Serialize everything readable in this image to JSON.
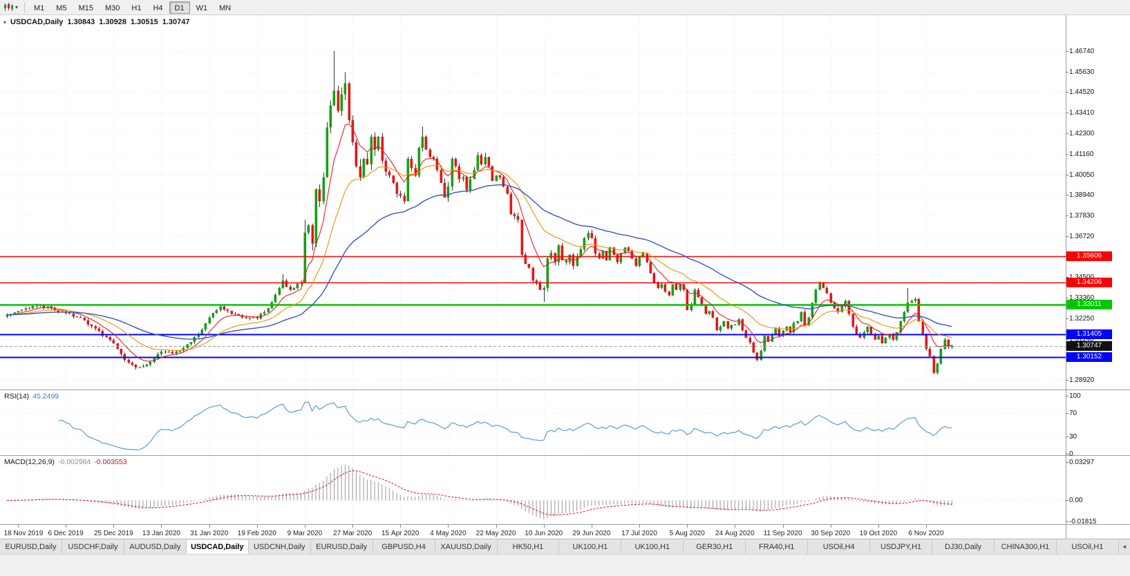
{
  "icons": {
    "toolbar_caret": "▾",
    "title_arrow": "▾",
    "tab_scroll_left": "◄"
  },
  "toolbar": {
    "timeframes": [
      {
        "label": "M1",
        "active": false
      },
      {
        "label": "M5",
        "active": false
      },
      {
        "label": "M15",
        "active": false
      },
      {
        "label": "M30",
        "active": false
      },
      {
        "label": "H1",
        "active": false
      },
      {
        "label": "H4",
        "active": false
      },
      {
        "label": "D1",
        "active": true
      },
      {
        "label": "W1",
        "active": false
      },
      {
        "label": "MN",
        "active": false
      }
    ]
  },
  "chart": {
    "title": {
      "symbol": "USDCAD,Daily",
      "open": "1.30843",
      "high": "1.30928",
      "low": "1.30515",
      "close": "1.30747"
    }
  },
  "indicators": {
    "rsi": {
      "label": "RSI(14)",
      "value": "45.2499",
      "color": "#5a9bd4",
      "levels": [
        70,
        30
      ],
      "ticks": [
        {
          "label": "100",
          "value": 100
        },
        {
          "label": "70",
          "value": 70
        },
        {
          "label": "30",
          "value": 30
        },
        {
          "label": "0",
          "value": 0
        }
      ]
    },
    "macd": {
      "label": "MACD(12,26,9)",
      "main_value": "-0.002984",
      "signal_value": "-0.003553",
      "histogram_color": "#a0a0a0",
      "signal_color": "#e01010",
      "ticks": [
        {
          "label": "0.03297",
          "value": 0.03297
        },
        {
          "label": "0.00",
          "value": 0
        },
        {
          "label": "-0.01815",
          "value": -0.01815
        }
      ],
      "range": [
        -0.01815,
        0.03297
      ]
    }
  },
  "chart_data": {
    "type": "candlestick",
    "symbol": "USDCAD",
    "timeframe": "Daily",
    "n_candles": 258,
    "up_color": "#14a014",
    "down_color": "#e81414",
    "wick_color": "#333333",
    "y_axis_ticks": [
      {
        "label": "1.46740",
        "value": 1.4674
      },
      {
        "label": "1.45630",
        "value": 1.4563
      },
      {
        "label": "1.44520",
        "value": 1.4452
      },
      {
        "label": "1.43410",
        "value": 1.4341
      },
      {
        "label": "1.42300",
        "value": 1.423
      },
      {
        "label": "1.41160",
        "value": 1.4116
      },
      {
        "label": "1.40050",
        "value": 1.4005
      },
      {
        "label": "1.38940",
        "value": 1.3894
      },
      {
        "label": "1.37830",
        "value": 1.3783
      },
      {
        "label": "1.36720",
        "value": 1.3672
      },
      {
        "label": "1.35610",
        "value": 1.3561,
        "hidden": true
      },
      {
        "label": "1.34500",
        "value": 1.345
      },
      {
        "label": "1.33360",
        "value": 1.3336
      },
      {
        "label": "1.32250",
        "value": 1.3225
      },
      {
        "label": "1.31140",
        "value": 1.3114
      },
      {
        "label": "1.30030",
        "value": 1.3003,
        "hidden": true
      },
      {
        "label": "1.28920",
        "value": 1.2892
      }
    ],
    "x_axis_labels": [
      {
        "index": 3,
        "label": "18 Nov 2019"
      },
      {
        "index": 16,
        "label": "6 Dec 2019"
      },
      {
        "index": 29,
        "label": "25 Dec 2019"
      },
      {
        "index": 42,
        "label": "13 Jan 2020"
      },
      {
        "index": 55,
        "label": "31 Jan 2020"
      },
      {
        "index": 68,
        "label": "19 Feb 2020"
      },
      {
        "index": 81,
        "label": "9 Mar 2020"
      },
      {
        "index": 94,
        "label": "27 Mar 2020"
      },
      {
        "index": 107,
        "label": "15 Apr 2020"
      },
      {
        "index": 120,
        "label": "4 May 2020"
      },
      {
        "index": 133,
        "label": "22 May 2020"
      },
      {
        "index": 146,
        "label": "10 Jun 2020"
      },
      {
        "index": 159,
        "label": "29 Jun 2020"
      },
      {
        "index": 172,
        "label": "17 Jul 2020"
      },
      {
        "index": 185,
        "label": "5 Aug 2020"
      },
      {
        "index": 198,
        "label": "24 Aug 2020"
      },
      {
        "index": 211,
        "label": "11 Sep 2020"
      },
      {
        "index": 224,
        "label": "30 Sep 2020"
      },
      {
        "index": 237,
        "label": "19 Oct 2020"
      },
      {
        "index": 250,
        "label": "6 Nov 2020"
      }
    ],
    "levels": [
      {
        "value": 1.35606,
        "label": "1.35606",
        "color": "#ff0000",
        "width": 1.4
      },
      {
        "value": 1.34206,
        "label": "1.34206",
        "color": "#ff0000",
        "width": 1.4
      },
      {
        "value": 1.33011,
        "label": "1.33011",
        "color": "#00c800",
        "width": 2.4
      },
      {
        "value": 1.31405,
        "label": "1.31405",
        "color": "#0000ff",
        "width": 2
      },
      {
        "value": 1.30152,
        "label": "1.30152",
        "color": "#0000ff",
        "width": 2
      }
    ],
    "current_price": {
      "value": 1.30747,
      "label": "1.30747",
      "badge_color": "#111111"
    },
    "moving_averages": [
      {
        "type": "ema",
        "period": 8,
        "color": "#e02020",
        "width": 1.1
      },
      {
        "type": "ema",
        "period": 21,
        "color": "#f09000",
        "width": 1.1
      },
      {
        "type": "ema",
        "period": 50,
        "color": "#3356c0",
        "width": 1.4
      }
    ],
    "volatility": [
      {
        "from": 0,
        "to": 79,
        "amp": 0.0013
      },
      {
        "from": 80,
        "to": 100,
        "amp": 0.0045
      },
      {
        "from": 101,
        "to": 135,
        "amp": 0.0028
      },
      {
        "from": 136,
        "to": 160,
        "amp": 0.0022
      },
      {
        "from": 161,
        "to": 257,
        "amp": 0.0013
      }
    ],
    "wick_overrides": [
      {
        "i": 35,
        "l": 1.2948
      },
      {
        "i": 75,
        "h": 1.3465
      },
      {
        "i": 81,
        "h": 1.376
      },
      {
        "i": 89,
        "h": 1.4674
      },
      {
        "i": 92,
        "h": 1.456
      },
      {
        "i": 113,
        "h": 1.4265
      },
      {
        "i": 146,
        "l": 1.3315
      },
      {
        "i": 204,
        "l": 1.2995
      },
      {
        "i": 221,
        "h": 1.342
      },
      {
        "i": 245,
        "h": 1.339
      },
      {
        "i": 252,
        "l": 1.2928
      }
    ],
    "close_anchors": [
      [
        0,
        1.3245
      ],
      [
        3,
        1.3265
      ],
      [
        8,
        1.33
      ],
      [
        12,
        1.328
      ],
      [
        16,
        1.3255
      ],
      [
        20,
        1.323
      ],
      [
        24,
        1.317
      ],
      [
        29,
        1.309
      ],
      [
        32,
        1.3
      ],
      [
        35,
        1.296
      ],
      [
        38,
        1.2975
      ],
      [
        42,
        1.3045
      ],
      [
        45,
        1.3035
      ],
      [
        48,
        1.3065
      ],
      [
        52,
        1.314
      ],
      [
        55,
        1.323
      ],
      [
        58,
        1.329
      ],
      [
        61,
        1.325
      ],
      [
        64,
        1.323
      ],
      [
        68,
        1.3225
      ],
      [
        71,
        1.328
      ],
      [
        74,
        1.339
      ],
      [
        75,
        1.343
      ],
      [
        77,
        1.338
      ],
      [
        80,
        1.342
      ],
      [
        81,
        1.369
      ],
      [
        82,
        1.373
      ],
      [
        83,
        1.363
      ],
      [
        84,
        1.3925
      ],
      [
        85,
        1.386
      ],
      [
        86,
        1.399
      ],
      [
        87,
        1.426
      ],
      [
        88,
        1.438
      ],
      [
        89,
        1.446
      ],
      [
        90,
        1.435
      ],
      [
        91,
        1.444
      ],
      [
        92,
        1.45
      ],
      [
        93,
        1.43
      ],
      [
        94,
        1.418
      ],
      [
        95,
        1.405
      ],
      [
        96,
        1.399
      ],
      [
        97,
        1.409
      ],
      [
        98,
        1.406
      ],
      [
        99,
        1.421
      ],
      [
        100,
        1.414
      ],
      [
        101,
        1.421
      ],
      [
        102,
        1.408
      ],
      [
        103,
        1.402
      ],
      [
        104,
        1.4
      ],
      [
        105,
        1.396
      ],
      [
        106,
        1.39
      ],
      [
        107,
        1.389
      ],
      [
        108,
        1.386
      ],
      [
        109,
        1.409
      ],
      [
        110,
        1.404
      ],
      [
        111,
        1.4
      ],
      [
        112,
        1.415
      ],
      [
        113,
        1.421
      ],
      [
        114,
        1.414
      ],
      [
        115,
        1.41
      ],
      [
        116,
        1.409
      ],
      [
        117,
        1.403
      ],
      [
        118,
        1.396
      ],
      [
        119,
        1.388
      ],
      [
        120,
        1.394
      ],
      [
        121,
        1.409
      ],
      [
        122,
        1.405
      ],
      [
        123,
        1.398
      ],
      [
        124,
        1.399
      ],
      [
        125,
        1.392
      ],
      [
        126,
        1.398
      ],
      [
        127,
        1.403
      ],
      [
        128,
        1.411
      ],
      [
        129,
        1.406
      ],
      [
        130,
        1.41
      ],
      [
        131,
        1.405
      ],
      [
        132,
        1.397
      ],
      [
        133,
        1.4
      ],
      [
        134,
        1.399
      ],
      [
        135,
        1.394
      ],
      [
        136,
        1.39
      ],
      [
        137,
        1.379
      ],
      [
        138,
        1.378
      ],
      [
        139,
        1.376
      ],
      [
        140,
        1.357
      ],
      [
        141,
        1.352
      ],
      [
        142,
        1.35
      ],
      [
        143,
        1.343
      ],
      [
        144,
        1.342
      ],
      [
        145,
        1.338
      ],
      [
        146,
        1.339
      ],
      [
        147,
        1.355
      ],
      [
        148,
        1.358
      ],
      [
        149,
        1.353
      ],
      [
        150,
        1.362
      ],
      [
        151,
        1.354
      ],
      [
        152,
        1.353
      ],
      [
        153,
        1.357
      ],
      [
        154,
        1.351
      ],
      [
        155,
        1.356
      ],
      [
        156,
        1.36
      ],
      [
        157,
        1.366
      ],
      [
        158,
        1.3688
      ],
      [
        159,
        1.366
      ],
      [
        160,
        1.3576
      ],
      [
        161,
        1.355
      ],
      [
        162,
        1.359
      ],
      [
        163,
        1.354
      ],
      [
        164,
        1.361
      ],
      [
        165,
        1.357
      ],
      [
        166,
        1.353
      ],
      [
        167,
        1.358
      ],
      [
        168,
        1.361
      ],
      [
        169,
        1.359
      ],
      [
        170,
        1.355
      ],
      [
        171,
        1.351
      ],
      [
        172,
        1.356
      ],
      [
        173,
        1.358
      ],
      [
        174,
        1.353
      ],
      [
        175,
        1.347
      ],
      [
        176,
        1.342
      ],
      [
        177,
        1.339
      ],
      [
        178,
        1.341
      ],
      [
        179,
        1.337
      ],
      [
        180,
        1.335
      ],
      [
        181,
        1.341
      ],
      [
        182,
        1.338
      ],
      [
        183,
        1.341
      ],
      [
        184,
        1.338
      ],
      [
        185,
        1.327
      ],
      [
        186,
        1.33
      ],
      [
        187,
        1.338
      ],
      [
        188,
        1.334
      ],
      [
        189,
        1.33
      ],
      [
        190,
        1.325
      ],
      [
        191,
        1.3265
      ],
      [
        192,
        1.323
      ],
      [
        193,
        1.316
      ],
      [
        194,
        1.318
      ],
      [
        195,
        1.321
      ],
      [
        196,
        1.317
      ],
      [
        197,
        1.319
      ],
      [
        198,
        1.319
      ],
      [
        199,
        1.322
      ],
      [
        200,
        1.316
      ],
      [
        201,
        1.312
      ],
      [
        202,
        1.3095
      ],
      [
        203,
        1.304
      ],
      [
        204,
        1.3
      ],
      [
        205,
        1.305
      ],
      [
        206,
        1.313
      ],
      [
        207,
        1.31
      ],
      [
        208,
        1.314
      ],
      [
        209,
        1.317
      ],
      [
        210,
        1.313
      ],
      [
        211,
        1.316
      ],
      [
        212,
        1.318
      ],
      [
        213,
        1.315
      ],
      [
        214,
        1.32
      ],
      [
        215,
        1.321
      ],
      [
        216,
        1.326
      ],
      [
        217,
        1.319
      ],
      [
        218,
        1.323
      ],
      [
        219,
        1.331
      ],
      [
        220,
        1.338
      ],
      [
        221,
        1.342
      ],
      [
        222,
        1.339
      ],
      [
        223,
        1.336
      ],
      [
        224,
        1.331
      ],
      [
        225,
        1.328
      ],
      [
        226,
        1.326
      ],
      [
        227,
        1.329
      ],
      [
        228,
        1.332
      ],
      [
        229,
        1.325
      ],
      [
        230,
        1.318
      ],
      [
        231,
        1.314
      ],
      [
        232,
        1.312
      ],
      [
        233,
        1.315
      ],
      [
        234,
        1.318
      ],
      [
        235,
        1.314
      ],
      [
        236,
        1.311
      ],
      [
        237,
        1.313
      ],
      [
        238,
        1.309
      ],
      [
        239,
        1.312
      ],
      [
        240,
        1.314
      ],
      [
        241,
        1.311
      ],
      [
        242,
        1.315
      ],
      [
        243,
        1.321
      ],
      [
        244,
        1.326
      ],
      [
        245,
        1.331
      ],
      [
        246,
        1.332
      ],
      [
        247,
        1.333
      ],
      [
        248,
        1.321
      ],
      [
        249,
        1.314
      ],
      [
        250,
        1.306
      ],
      [
        251,
        1.302
      ],
      [
        252,
        1.293
      ],
      [
        253,
        1.298
      ],
      [
        254,
        1.306
      ],
      [
        255,
        1.311
      ],
      [
        256,
        1.307
      ],
      [
        257,
        1.30747
      ]
    ]
  },
  "tabs": {
    "scroll_icon": "◄",
    "items": [
      {
        "label": "EURUSD,Daily",
        "active": false
      },
      {
        "label": "USDCHF,Daily",
        "active": false
      },
      {
        "label": "AUDUSD,Daily",
        "active": false
      },
      {
        "label": "USDCAD,Daily",
        "active": true
      },
      {
        "label": "USDCNH,Daily",
        "active": false
      },
      {
        "label": "EURUSD,Daily",
        "active": false
      },
      {
        "label": "GBPUSD,H4",
        "active": false
      },
      {
        "label": "XAUUSD,Daily",
        "active": false
      },
      {
        "label": "HK50,H1",
        "active": false
      },
      {
        "label": "UK100,H1",
        "active": false
      },
      {
        "label": "UK100,H1",
        "active": false
      },
      {
        "label": "GER30,H1",
        "active": false
      },
      {
        "label": "FRA40,H1",
        "active": false
      },
      {
        "label": "USOil,H4",
        "active": false
      },
      {
        "label": "USDJPY,H1",
        "active": false
      },
      {
        "label": "DJ30,Daily",
        "active": false
      },
      {
        "label": "CHINA300,H1",
        "active": false
      },
      {
        "label": "USOil,H1",
        "active": false
      }
    ]
  }
}
